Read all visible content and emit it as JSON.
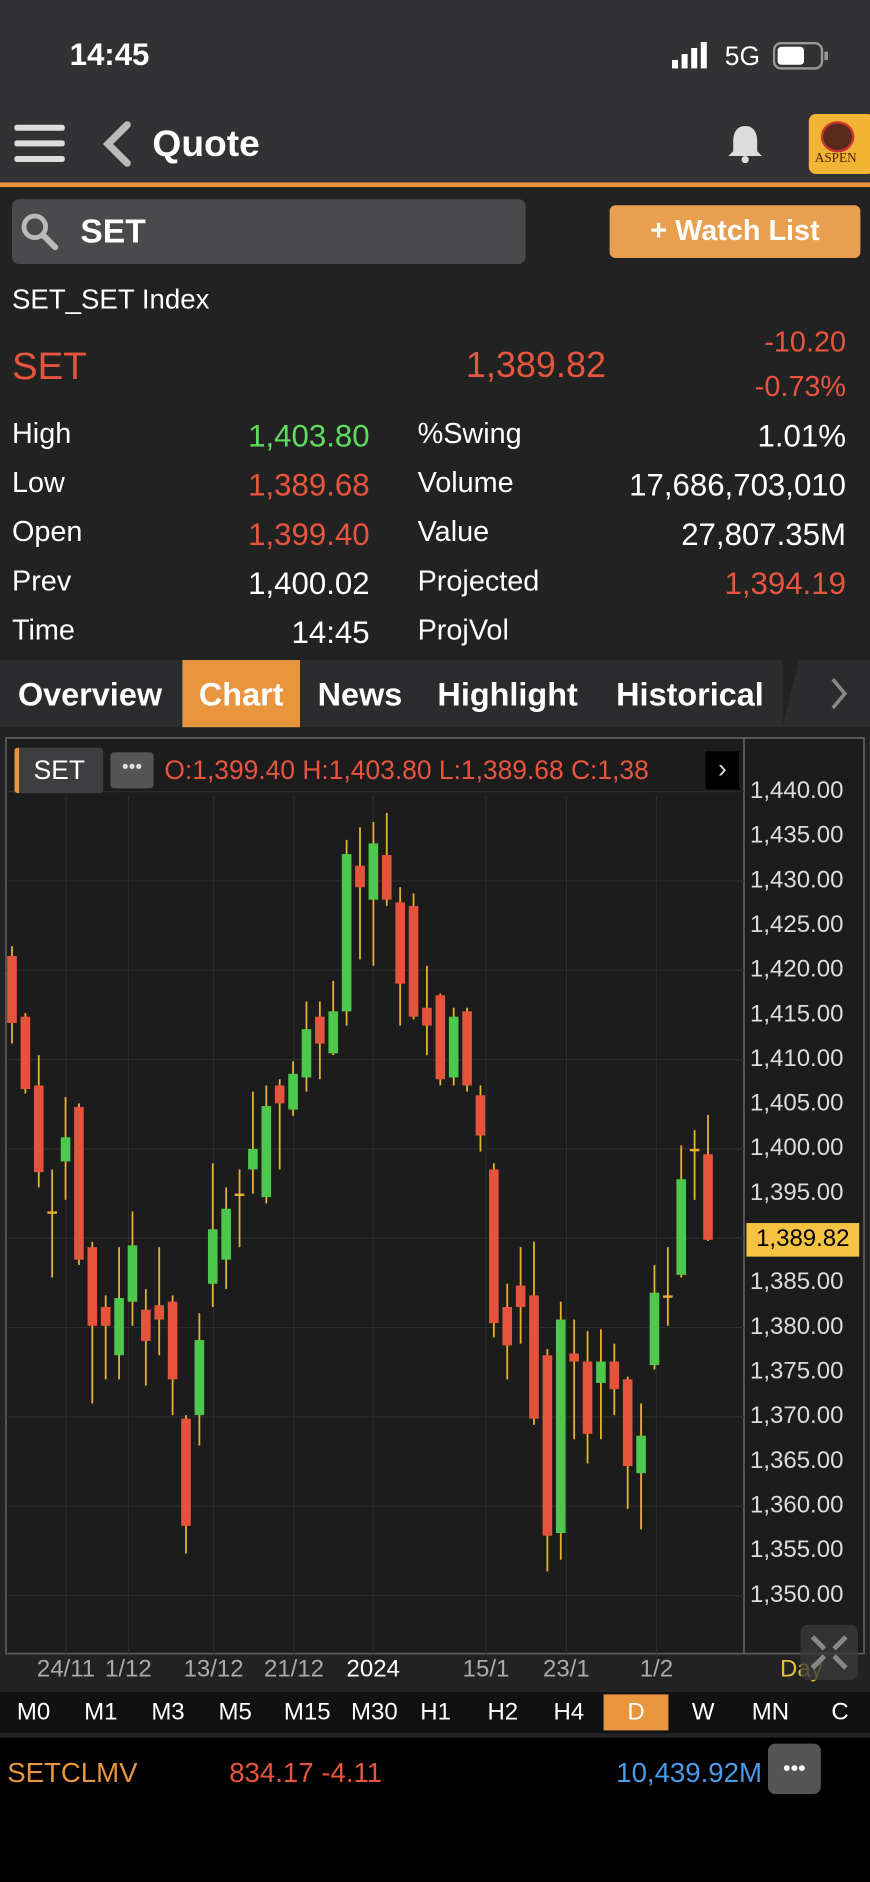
{
  "status_bar": {
    "time": "14:45",
    "network": "5G"
  },
  "nav": {
    "title": "Quote",
    "logo": "ASPEN"
  },
  "search": {
    "query": "SET",
    "button": "+ Watch List"
  },
  "quote": {
    "name": "SET_SET Index",
    "symbol": "SET",
    "last": "1,389.82",
    "change": "-10.20",
    "change_pct": "-0.73%",
    "left": [
      {
        "label": "High",
        "value": "1,403.80",
        "color": "#5fdc5f"
      },
      {
        "label": "Low",
        "value": "1,389.68",
        "color": "#e8553e"
      },
      {
        "label": "Open",
        "value": "1,399.40",
        "color": "#e8553e"
      },
      {
        "label": "Prev",
        "value": "1,400.02",
        "color": "#ffffff"
      },
      {
        "label": "Time",
        "value": "14:45",
        "color": "#ffffff"
      }
    ],
    "right": [
      {
        "label": "%Swing",
        "value": "1.01%",
        "color": "#ffffff"
      },
      {
        "label": "Volume",
        "value": "17,686,703,010",
        "color": "#ffffff"
      },
      {
        "label": "Value",
        "value": "27,807.35M",
        "color": "#ffffff"
      },
      {
        "label": "Projected",
        "value": "1,394.19",
        "color": "#e8553e"
      },
      {
        "label": "ProjVol"
      }
    ]
  },
  "tabs": {
    "items": [
      "Overview",
      "Chart",
      "News",
      "Highlight",
      "Historical"
    ],
    "active": 1
  },
  "chart": {
    "type": "candlestick",
    "symbol": "SET",
    "ohlc": "O:1,399.40 H:1,403.80 L:1,389.68 C:1,38",
    "up_color": "#4cc94c",
    "down_color": "#e5533d",
    "wick_color": "#e6b12e",
    "candles": [
      {
        "o": 1421.6,
        "h": 1422.7,
        "l": 1411.8,
        "c": 1414.1
      },
      {
        "o": 1414.8,
        "h": 1415.2,
        "l": 1406.2,
        "c": 1406.7
      },
      {
        "o": 1407.1,
        "h": 1410.5,
        "l": 1395.7,
        "c": 1397.4
      },
      {
        "o": 1393.0,
        "h": 1397.7,
        "l": 1385.6,
        "c": 1393.0
      },
      {
        "o": 1398.6,
        "h": 1405.8,
        "l": 1394.3,
        "c": 1401.3
      },
      {
        "o": 1404.7,
        "h": 1405.1,
        "l": 1387.0,
        "c": 1387.6
      },
      {
        "o": 1389.0,
        "h": 1389.6,
        "l": 1371.5,
        "c": 1380.2
      },
      {
        "o": 1382.3,
        "h": 1383.6,
        "l": 1374.2,
        "c": 1380.2
      },
      {
        "o": 1376.9,
        "h": 1389.0,
        "l": 1374.2,
        "c": 1383.3
      },
      {
        "o": 1382.9,
        "h": 1393.0,
        "l": 1380.2,
        "c": 1389.2
      },
      {
        "o": 1382.0,
        "h": 1384.3,
        "l": 1373.5,
        "c": 1378.5
      },
      {
        "o": 1382.5,
        "h": 1389.0,
        "l": 1376.9,
        "c": 1380.9
      },
      {
        "o": 1382.9,
        "h": 1383.6,
        "l": 1370.2,
        "c": 1374.2
      },
      {
        "o": 1369.8,
        "h": 1370.2,
        "l": 1354.7,
        "c": 1357.8
      },
      {
        "o": 1370.2,
        "h": 1381.6,
        "l": 1366.8,
        "c": 1378.6
      },
      {
        "o": 1384.9,
        "h": 1398.4,
        "l": 1382.3,
        "c": 1391.0
      },
      {
        "o": 1387.6,
        "h": 1395.7,
        "l": 1384.3,
        "c": 1393.3
      },
      {
        "o": 1395.0,
        "h": 1397.7,
        "l": 1389.0,
        "c": 1395.0
      },
      {
        "o": 1397.7,
        "h": 1406.4,
        "l": 1395.0,
        "c": 1400.0
      },
      {
        "o": 1394.6,
        "h": 1407.1,
        "l": 1393.9,
        "c": 1404.8
      },
      {
        "o": 1407.1,
        "h": 1407.8,
        "l": 1397.7,
        "c": 1405.1
      },
      {
        "o": 1404.4,
        "h": 1409.8,
        "l": 1403.7,
        "c": 1408.4
      },
      {
        "o": 1408.0,
        "h": 1416.5,
        "l": 1406.4,
        "c": 1413.4
      },
      {
        "o": 1414.8,
        "h": 1416.5,
        "l": 1407.8,
        "c": 1411.8
      },
      {
        "o": 1410.7,
        "h": 1418.8,
        "l": 1410.5,
        "c": 1415.4
      },
      {
        "o": 1415.4,
        "h": 1434.6,
        "l": 1413.8,
        "c": 1433.0
      },
      {
        "o": 1431.7,
        "h": 1436.0,
        "l": 1421.2,
        "c": 1429.3
      },
      {
        "o": 1427.9,
        "h": 1436.6,
        "l": 1420.5,
        "c": 1434.2
      },
      {
        "o": 1432.9,
        "h": 1437.6,
        "l": 1427.2,
        "c": 1427.9
      },
      {
        "o": 1427.6,
        "h": 1429.3,
        "l": 1413.8,
        "c": 1418.5
      },
      {
        "o": 1427.2,
        "h": 1428.6,
        "l": 1414.5,
        "c": 1414.8
      },
      {
        "o": 1415.8,
        "h": 1420.5,
        "l": 1410.5,
        "c": 1413.8
      },
      {
        "o": 1417.2,
        "h": 1417.4,
        "l": 1407.1,
        "c": 1407.8
      },
      {
        "o": 1408.0,
        "h": 1415.8,
        "l": 1407.1,
        "c": 1414.8
      },
      {
        "o": 1415.4,
        "h": 1415.8,
        "l": 1406.4,
        "c": 1407.1
      },
      {
        "o": 1406.0,
        "h": 1407.1,
        "l": 1399.7,
        "c": 1401.5
      },
      {
        "o": 1397.7,
        "h": 1398.4,
        "l": 1378.9,
        "c": 1380.5
      },
      {
        "o": 1382.3,
        "h": 1384.9,
        "l": 1374.2,
        "c": 1378.0
      },
      {
        "o": 1384.7,
        "h": 1389.0,
        "l": 1378.2,
        "c": 1382.3
      },
      {
        "o": 1383.6,
        "h": 1389.6,
        "l": 1369.1,
        "c": 1369.8
      },
      {
        "o": 1376.9,
        "h": 1377.6,
        "l": 1352.7,
        "c": 1356.7
      },
      {
        "o": 1357.0,
        "h": 1382.9,
        "l": 1354.0,
        "c": 1380.9
      },
      {
        "o": 1377.1,
        "h": 1380.9,
        "l": 1367.5,
        "c": 1376.2
      },
      {
        "o": 1376.2,
        "h": 1379.6,
        "l": 1364.8,
        "c": 1368.1
      },
      {
        "o": 1373.8,
        "h": 1379.8,
        "l": 1367.5,
        "c": 1376.2
      },
      {
        "o": 1376.2,
        "h": 1378.2,
        "l": 1370.2,
        "c": 1373.1
      },
      {
        "o": 1374.2,
        "h": 1374.5,
        "l": 1359.7,
        "c": 1364.5
      },
      {
        "o": 1363.7,
        "h": 1371.5,
        "l": 1357.4,
        "c": 1367.9
      },
      {
        "o": 1375.8,
        "h": 1387.0,
        "l": 1375.3,
        "c": 1383.9
      },
      {
        "o": 1383.6,
        "h": 1389.0,
        "l": 1380.2,
        "c": 1383.6
      },
      {
        "o": 1385.9,
        "h": 1400.4,
        "l": 1385.6,
        "c": 1396.6
      },
      {
        "o": 1400.0,
        "h": 1402.1,
        "l": 1394.3,
        "c": 1400.0
      },
      {
        "o": 1399.4,
        "h": 1403.8,
        "l": 1389.68,
        "c": 1389.82
      }
    ],
    "ylim": [
      1343.5,
      1446
    ],
    "yticks": [
      {
        "value": 1440,
        "label": "1,440.00"
      },
      {
        "value": 1435,
        "label": "1,435.00"
      },
      {
        "value": 1430,
        "label": "1,430.00"
      },
      {
        "value": 1425,
        "label": "1,425.00"
      },
      {
        "value": 1420,
        "label": "1,420.00"
      },
      {
        "value": 1415,
        "label": "1,415.00"
      },
      {
        "value": 1410,
        "label": "1,410.00"
      },
      {
        "value": 1405,
        "label": "1,405.00"
      },
      {
        "value": 1400,
        "label": "1,400.00"
      },
      {
        "value": 1395,
        "label": "1,395.00"
      },
      {
        "value": 1390,
        "label": "1,390.00"
      },
      {
        "value": 1385,
        "label": "1,385.00"
      },
      {
        "value": 1380,
        "label": "1,380.00"
      },
      {
        "value": 1375,
        "label": "1,375.00"
      },
      {
        "value": 1370,
        "label": "1,370.00"
      },
      {
        "value": 1365,
        "label": "1,365.00"
      },
      {
        "value": 1360,
        "label": "1,360.00"
      },
      {
        "value": 1355,
        "label": "1,355.00"
      },
      {
        "value": 1350,
        "label": "1,350.00"
      }
    ],
    "xlabels": [
      "24/11",
      "1/12",
      "13/12",
      "21/12",
      "2024",
      "15/1",
      "23/1",
      "1/2"
    ],
    "last_price": {
      "value": 1389.82,
      "label": "1,389.82"
    },
    "period": "Day"
  },
  "timeframes": {
    "items": [
      "M0",
      "M1",
      "M3",
      "M5",
      "M15",
      "M30",
      "H1",
      "H2",
      "H4",
      "D",
      "W",
      "MN",
      "C"
    ],
    "active": 9
  },
  "footer": {
    "symbol": "SETCLMV",
    "quote": "834.17 -4.11",
    "value": "10,439.92M"
  }
}
